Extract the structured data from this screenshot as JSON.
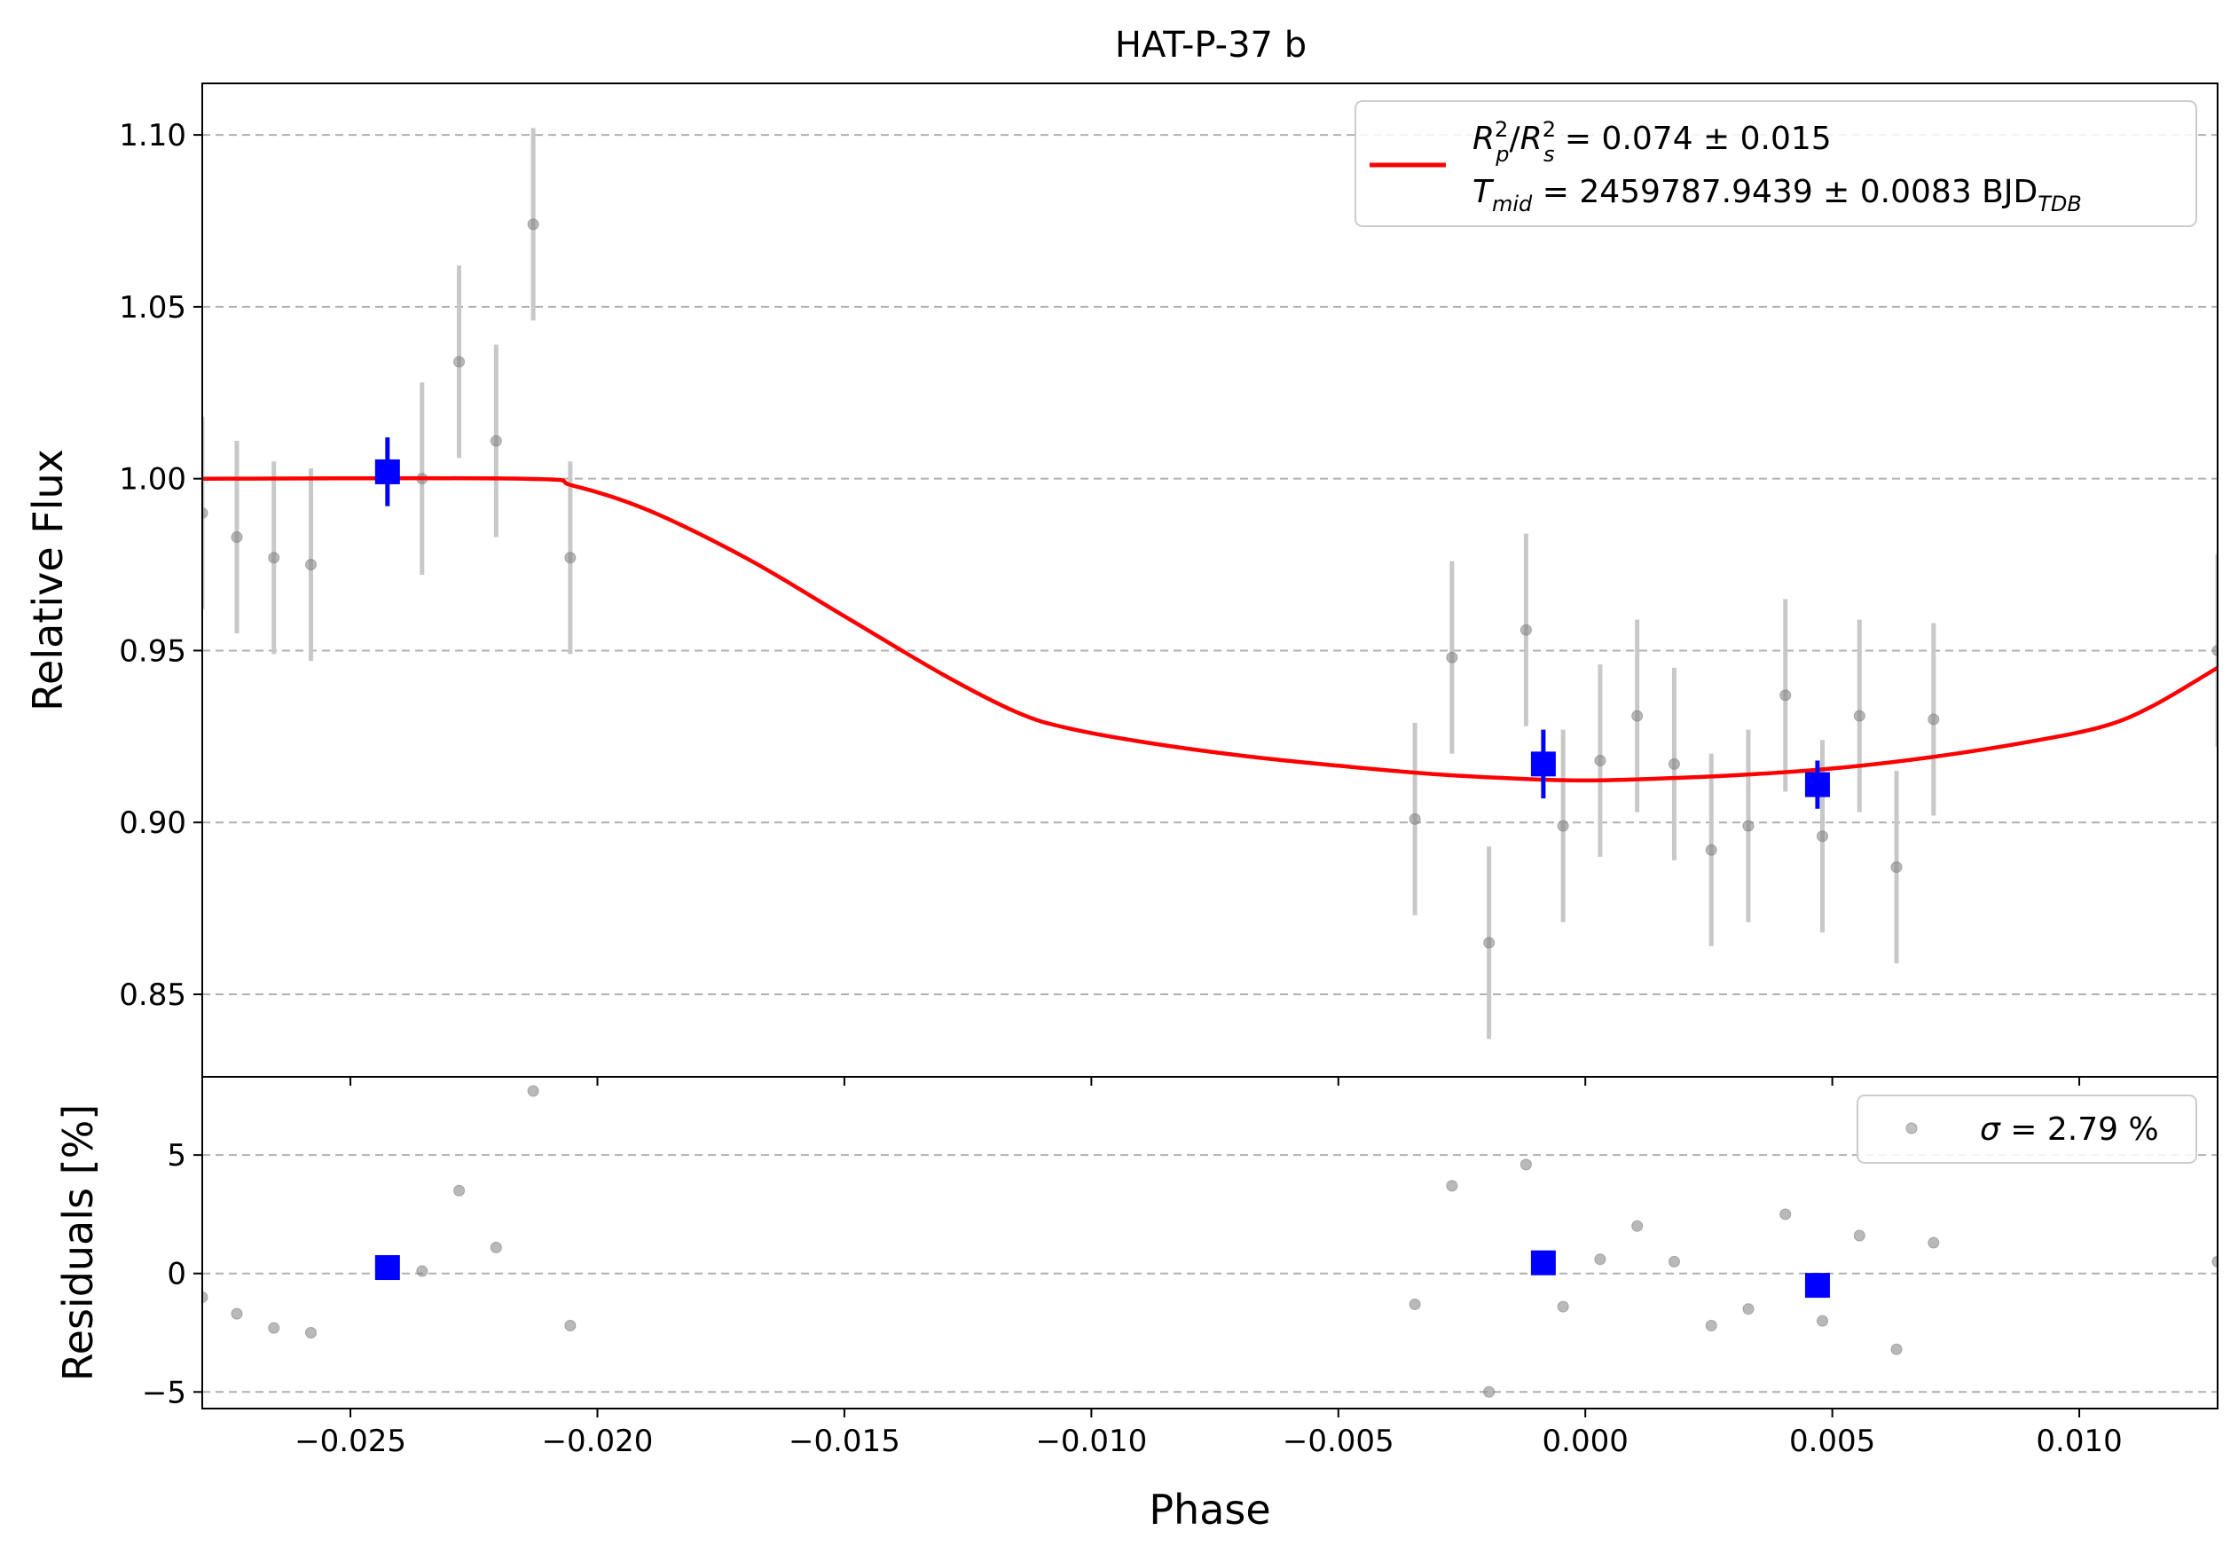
{
  "chart_data": {
    "type": "scatter",
    "title": "HAT-P-37 b",
    "xlabel": "Phase",
    "xlim": [
      -0.028,
      0.0128
    ],
    "x_ticks": [
      -0.025,
      -0.02,
      -0.015,
      -0.01,
      -0.005,
      0.0,
      0.005,
      0.01
    ],
    "x_tick_labels": [
      "−0.025",
      "−0.020",
      "−0.015",
      "−0.010",
      "−0.005",
      "0.000",
      "0.005",
      "0.010"
    ],
    "grid": true,
    "colors": {
      "model": "#ff0000",
      "binned": "#0000ff",
      "raw": "#808080",
      "raw_errorbar": "#c8c8c8",
      "grid": "#b0b0b0"
    },
    "panels": {
      "flux": {
        "ylabel": "Relative Flux",
        "ylim": [
          0.826,
          1.115
        ],
        "y_ticks": [
          0.85,
          0.9,
          0.95,
          1.0,
          1.05,
          1.1
        ],
        "y_tick_labels": [
          "0.85",
          "0.90",
          "0.95",
          "1.00",
          "1.05",
          "1.10"
        ],
        "legend": {
          "position": "upper right",
          "model_label_main": "R",
          "model_label_line1": "R_p^2/R_s^2 = 0.074 ± 0.015",
          "model_label_line2": "T_mid = 2459787.9439 ± 0.0083 BJD_TDB",
          "line1_a": "R",
          "line1_a_sup": "2",
          "line1_a_sub": "p",
          "line1_slash": "/",
          "line1_b": "R",
          "line1_b_sup": "2",
          "line1_b_sub": "s",
          "line1_rest": " = 0.074 ± 0.015",
          "line2_t": "T",
          "line2_t_sub": "mid",
          "line2_rest": " = 2459787.9439 ± 0.0083 BJD",
          "line2_rest_sub": "TDB"
        },
        "model": {
          "x": [
            -0.028,
            -0.0215,
            -0.0205,
            -0.019,
            -0.017,
            -0.015,
            -0.013,
            -0.0115,
            -0.0105,
            -0.009,
            -0.007,
            -0.005,
            -0.003,
            -0.001,
            0.0,
            0.001,
            0.003,
            0.005,
            0.007,
            0.009,
            0.0105,
            0.0115,
            0.0128
          ],
          "y": [
            1.0,
            1.0,
            0.998,
            0.991,
            0.977,
            0.96,
            0.943,
            0.932,
            0.9275,
            0.9235,
            0.9195,
            0.9165,
            0.914,
            0.9125,
            0.9122,
            0.9125,
            0.9137,
            0.9157,
            0.919,
            0.9235,
            0.928,
            0.934,
            0.945
          ]
        },
        "raw_points": [
          {
            "x": -0.028,
            "y": 0.99,
            "err": 0.028
          },
          {
            "x": -0.0273,
            "y": 0.983,
            "err": 0.028
          },
          {
            "x": -0.02655,
            "y": 0.977,
            "err": 0.028
          },
          {
            "x": -0.0258,
            "y": 0.975,
            "err": 0.028
          },
          {
            "x": -0.02355,
            "y": 1.0,
            "err": 0.028
          },
          {
            "x": -0.0228,
            "y": 1.034,
            "err": 0.028
          },
          {
            "x": -0.02205,
            "y": 1.011,
            "err": 0.028
          },
          {
            "x": -0.0213,
            "y": 1.074,
            "err": 0.028
          },
          {
            "x": -0.02055,
            "y": 0.977,
            "err": 0.028
          },
          {
            "x": -0.00345,
            "y": 0.901,
            "err": 0.028
          },
          {
            "x": -0.0027,
            "y": 0.948,
            "err": 0.028
          },
          {
            "x": -0.00195,
            "y": 0.865,
            "err": 0.028
          },
          {
            "x": -0.0012,
            "y": 0.956,
            "err": 0.028
          },
          {
            "x": -0.00045,
            "y": 0.899,
            "err": 0.028
          },
          {
            "x": 0.0003,
            "y": 0.918,
            "err": 0.028
          },
          {
            "x": 0.00105,
            "y": 0.931,
            "err": 0.028
          },
          {
            "x": 0.0018,
            "y": 0.917,
            "err": 0.028
          },
          {
            "x": 0.00255,
            "y": 0.892,
            "err": 0.028
          },
          {
            "x": 0.0033,
            "y": 0.899,
            "err": 0.028
          },
          {
            "x": 0.00405,
            "y": 0.937,
            "err": 0.028
          },
          {
            "x": 0.0048,
            "y": 0.896,
            "err": 0.028
          },
          {
            "x": 0.00555,
            "y": 0.931,
            "err": 0.028
          },
          {
            "x": 0.0063,
            "y": 0.887,
            "err": 0.028
          },
          {
            "x": 0.00705,
            "y": 0.93,
            "err": 0.028
          },
          {
            "x": 0.0128,
            "y": 0.95,
            "err": 0.028
          }
        ],
        "binned_points": [
          {
            "x": -0.02425,
            "y": 1.002,
            "err": 0.01
          },
          {
            "x": -0.00085,
            "y": 0.917,
            "err": 0.01
          },
          {
            "x": 0.0047,
            "y": 0.911,
            "err": 0.007
          }
        ]
      },
      "residuals": {
        "ylabel": "Residuals [%]",
        "ylim": [
          -5.7,
          8.3
        ],
        "y_ticks": [
          -5,
          0,
          5
        ],
        "y_tick_labels": [
          "−5",
          "0",
          "5"
        ],
        "legend": {
          "position": "upper right",
          "sigma_symbol": "σ",
          "sigma_text": " = 2.79 %"
        },
        "raw_points": [
          {
            "x": -0.028,
            "y": -1.0
          },
          {
            "x": -0.0273,
            "y": -1.7
          },
          {
            "x": -0.02655,
            "y": -2.3
          },
          {
            "x": -0.0258,
            "y": -2.5
          },
          {
            "x": -0.02355,
            "y": 0.1
          },
          {
            "x": -0.0228,
            "y": 3.5
          },
          {
            "x": -0.02205,
            "y": 1.1
          },
          {
            "x": -0.0213,
            "y": 7.7
          },
          {
            "x": -0.02055,
            "y": -2.2
          },
          {
            "x": -0.00345,
            "y": -1.3
          },
          {
            "x": -0.0027,
            "y": 3.7
          },
          {
            "x": -0.00195,
            "y": -5.0
          },
          {
            "x": -0.0012,
            "y": 4.6
          },
          {
            "x": -0.00045,
            "y": -1.4
          },
          {
            "x": 0.0003,
            "y": 0.6
          },
          {
            "x": 0.00105,
            "y": 2.0
          },
          {
            "x": 0.0018,
            "y": 0.5
          },
          {
            "x": 0.00255,
            "y": -2.2
          },
          {
            "x": 0.0033,
            "y": -1.5
          },
          {
            "x": 0.00405,
            "y": 2.5
          },
          {
            "x": 0.0048,
            "y": -2.0
          },
          {
            "x": 0.00555,
            "y": 1.6
          },
          {
            "x": 0.0063,
            "y": -3.2
          },
          {
            "x": 0.00705,
            "y": 1.3
          },
          {
            "x": 0.0128,
            "y": 0.5
          }
        ],
        "binned_points": [
          {
            "x": -0.02425,
            "y": 0.25
          },
          {
            "x": -0.00085,
            "y": 0.45
          },
          {
            "x": 0.0047,
            "y": -0.5
          }
        ]
      }
    }
  }
}
